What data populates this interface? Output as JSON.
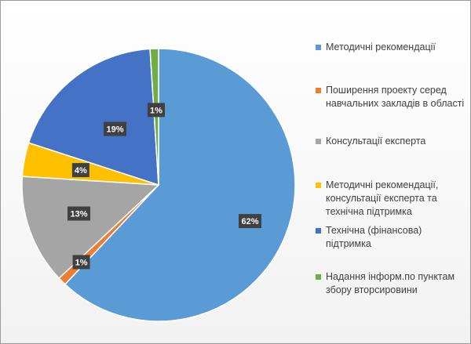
{
  "chart_data": {
    "type": "pie",
    "slices": [
      {
        "label": "Методичні рекомендації",
        "value": 62,
        "display": "62%",
        "color": "#5b9bd5"
      },
      {
        "label": "Поширення проекту серед навчальних закладів в області",
        "value": 1,
        "display": "1%",
        "color": "#ed7d31"
      },
      {
        "label": "Консультації експерта",
        "value": 13,
        "display": "13%",
        "color": "#a5a5a5"
      },
      {
        "label": "Методичні рекомендації, консультації експерта та технічна підтримка",
        "value": 4,
        "display": "4%",
        "color": "#ffc000"
      },
      {
        "label": "Технічна (фінансова) підтримка",
        "value": 19,
        "display": "19%",
        "color": "#4472c4"
      },
      {
        "label": "Надання інформ.по пунктам збору вторсировини",
        "value": 1,
        "display": "1%",
        "color": "#70ad47"
      }
    ],
    "legend_position": "right"
  }
}
